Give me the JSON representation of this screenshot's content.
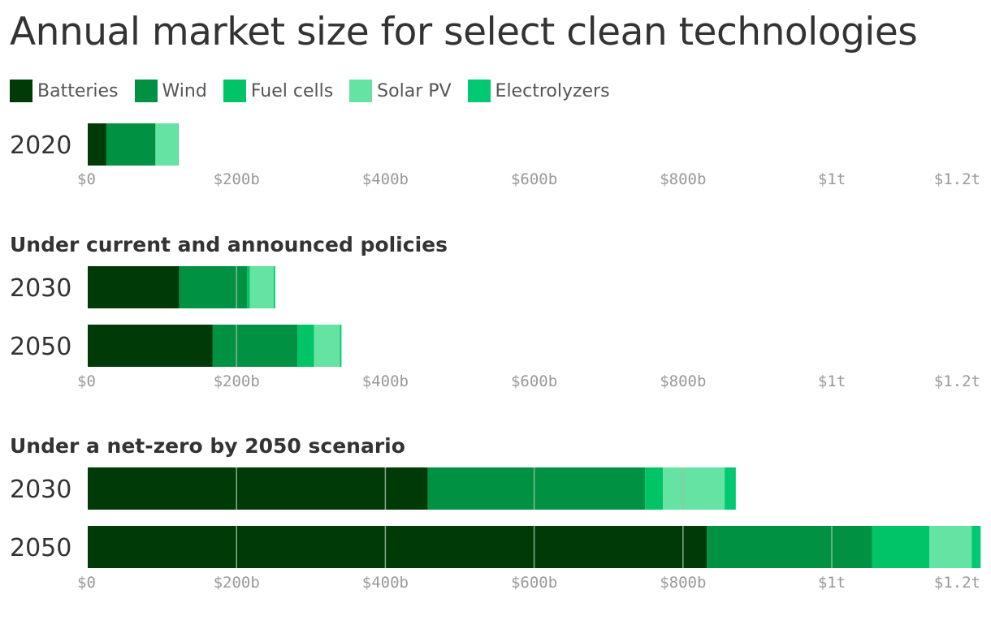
{
  "title": "Annual market size for select clean technologies",
  "colors": {
    "Batteries": "#003a06",
    "Wind": "#009143",
    "Fuel cells": "#00c465",
    "Solar PV": "#64e3a2",
    "Electrolyzers": "#00c972",
    "gridline": "#9fbfa9"
  },
  "chart_data": {
    "type": "bar",
    "orientation": "horizontal",
    "stacked": true,
    "unit": "USD",
    "xlim": [
      0,
      1200
    ],
    "x_tick_values": [
      0,
      200,
      400,
      600,
      800,
      1000,
      1200
    ],
    "x_tick_labels": [
      "$0",
      "$200b",
      "$400b",
      "$600b",
      "$800b",
      "$1t",
      "$1.2t"
    ],
    "series_names": [
      "Batteries",
      "Wind",
      "Fuel cells",
      "Solar PV",
      "Electrolyzers"
    ],
    "panels": [
      {
        "subtitle": "",
        "rows": [
          {
            "category": "2020",
            "values": [
              25,
              66,
              0,
              30,
              1
            ]
          }
        ]
      },
      {
        "subtitle": "Under current and announced policies",
        "rows": [
          {
            "category": "2030",
            "values": [
              123,
              91,
              4,
              32,
              2
            ]
          },
          {
            "category": "2050",
            "values": [
              168,
              114,
              22,
              35,
              2
            ]
          }
        ]
      },
      {
        "subtitle": "Under a net-zero by 2050 scenario",
        "rows": [
          {
            "category": "2030",
            "values": [
              457,
              292,
              24,
              83,
              15
            ]
          },
          {
            "category": "2050",
            "values": [
              832,
              222,
              77,
              57,
              12
            ]
          }
        ]
      }
    ]
  }
}
